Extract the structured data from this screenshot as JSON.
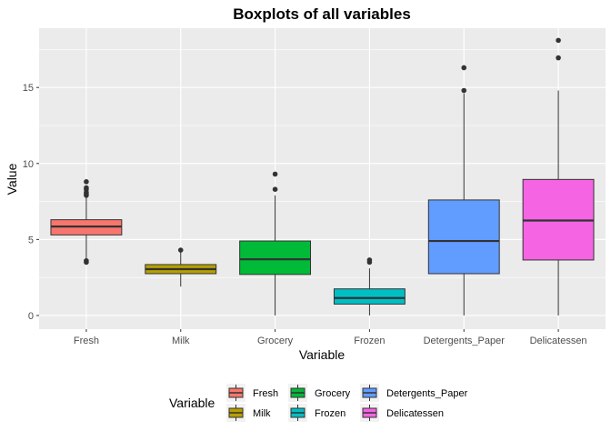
{
  "chart_data": {
    "type": "boxplot",
    "title": "Boxplots of all variables",
    "xlabel": "Variable",
    "ylabel": "Value",
    "ylim": [
      -0.9,
      18.9
    ],
    "yticks": [
      0,
      5,
      10,
      15
    ],
    "grid": true,
    "legend": {
      "title": "Variable",
      "position": "bottom",
      "entries": [
        "Fresh",
        "Milk",
        "Grocery",
        "Frozen",
        "Detergents_Paper",
        "Delicatessen"
      ]
    },
    "categories": [
      "Fresh",
      "Milk",
      "Grocery",
      "Frozen",
      "Detergents_Paper",
      "Delicatessen"
    ],
    "boxes": [
      {
        "name": "Fresh",
        "color": "#F8766D",
        "min": 3.7,
        "q1": 5.3,
        "median": 5.85,
        "q3": 6.3,
        "max": 7.8,
        "outliers": [
          7.9,
          8.0,
          8.1,
          8.3,
          8.4,
          8.8,
          3.5,
          3.6
        ]
      },
      {
        "name": "Milk",
        "color": "#B79F00",
        "min": 1.9,
        "q1": 2.75,
        "median": 3.05,
        "q3": 3.35,
        "max": 4.2,
        "outliers": [
          4.3
        ]
      },
      {
        "name": "Grocery",
        "color": "#00BA38",
        "min": 0.0,
        "q1": 2.7,
        "median": 3.7,
        "q3": 4.9,
        "max": 7.9,
        "outliers": [
          8.3,
          9.3
        ]
      },
      {
        "name": "Frozen",
        "color": "#00BFC4",
        "min": 0.0,
        "q1": 0.75,
        "median": 1.15,
        "q3": 1.75,
        "max": 3.1,
        "outliers": [
          3.5,
          3.65
        ]
      },
      {
        "name": "Detergents_Paper",
        "color": "#619CFF",
        "min": 0.0,
        "q1": 2.75,
        "median": 4.9,
        "q3": 7.6,
        "max": 14.6,
        "outliers": [
          14.8,
          16.3
        ]
      },
      {
        "name": "Delicatessen",
        "color": "#F564E3",
        "min": 0.0,
        "q1": 3.65,
        "median": 6.25,
        "q3": 8.95,
        "max": 14.8,
        "outliers": [
          16.95,
          18.1
        ]
      }
    ]
  }
}
